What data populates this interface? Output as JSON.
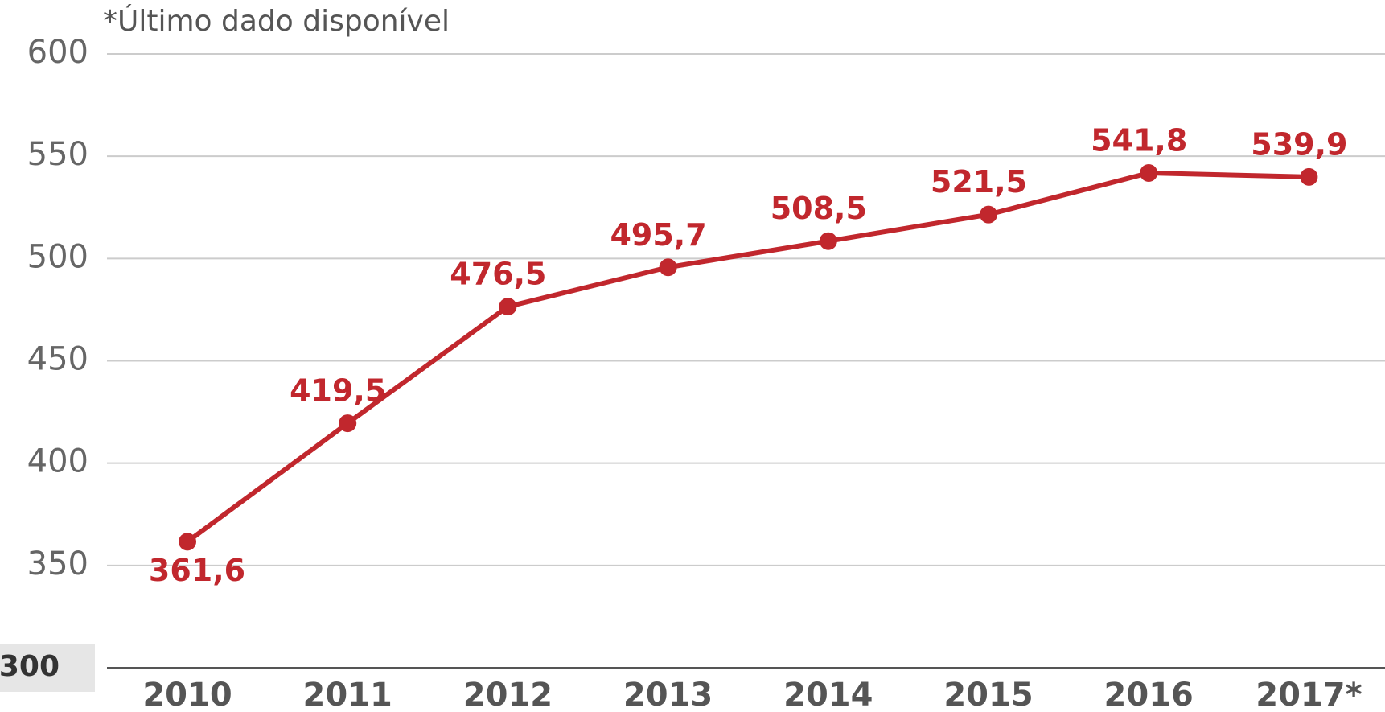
{
  "chart_data": {
    "type": "line",
    "annotation": "*Último dado disponível",
    "categories": [
      "2010",
      "2011",
      "2012",
      "2013",
      "2014",
      "2015",
      "2016",
      "2017*"
    ],
    "series": [
      {
        "name": "",
        "color": "#c1272d",
        "values": [
          361.6,
          419.5,
          476.5,
          495.7,
          508.5,
          521.5,
          541.8,
          539.9
        ],
        "value_labels": [
          "361,6",
          "419,5",
          "476,5",
          "495,7",
          "508,5",
          "521,5",
          "541,8",
          "539,9"
        ]
      }
    ],
    "ylim": [
      300,
      600
    ],
    "yticks": [
      300,
      350,
      400,
      450,
      500,
      550,
      600
    ],
    "grid": true
  }
}
